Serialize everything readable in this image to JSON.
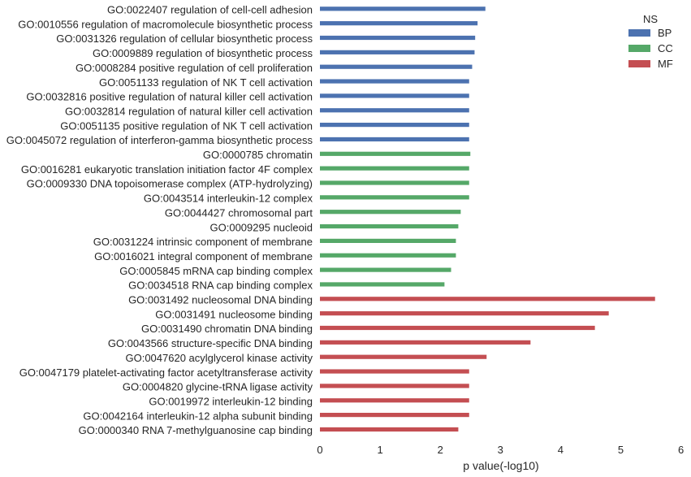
{
  "chart_data": {
    "type": "bar",
    "orientation": "horizontal",
    "xlabel": "p value(-log10)",
    "ylabel": "",
    "xlim": [
      0,
      6
    ],
    "xticks": [
      "0",
      "1",
      "2",
      "3",
      "4",
      "5",
      "6"
    ],
    "grid": false,
    "legend": {
      "title": "NS",
      "placement": "top-right",
      "entries": [
        {
          "name": "BP",
          "color": "#4c72b0"
        },
        {
          "name": "CC",
          "color": "#55a868"
        },
        {
          "name": "MF",
          "color": "#c44e52"
        }
      ]
    },
    "categories": [
      "GO:0022407 regulation of cell-cell adhesion",
      "GO:0010556 regulation of macromolecule biosynthetic process",
      "GO:0031326 regulation of cellular biosynthetic process",
      "GO:0009889 regulation of biosynthetic process",
      "GO:0008284 positive regulation of cell proliferation",
      "GO:0051133 regulation of NK T cell activation",
      "GO:0032816 positive regulation of natural killer cell activation",
      "GO:0032814 regulation of natural killer cell activation",
      "GO:0051135 positive regulation of NK T cell activation",
      "GO:0045072 regulation of interferon-gamma biosynthetic process",
      "GO:0000785 chromatin",
      "GO:0016281 eukaryotic translation initiation factor 4F complex",
      "GO:0009330 DNA topoisomerase complex (ATP-hydrolyzing)",
      "GO:0043514 interleukin-12 complex",
      "GO:0044427 chromosomal part",
      "GO:0009295 nucleoid",
      "GO:0031224 intrinsic component of membrane",
      "GO:0016021 integral component of membrane",
      "GO:0005845 mRNA cap binding complex",
      "GO:0034518 RNA cap binding complex",
      "GO:0031492 nucleosomal DNA binding",
      "GO:0031491 nucleosome binding",
      "GO:0031490 chromatin DNA binding",
      "GO:0043566 structure-specific DNA binding",
      "GO:0047620 acylglycerol kinase activity",
      "GO:0047179 platelet-activating factor acetyltransferase activity",
      "GO:0004820 glycine-tRNA ligase activity",
      "GO:0019972 interleukin-12 binding",
      "GO:0042164 interleukin-12 alpha subunit binding",
      "GO:0000340 RNA 7-methylguanosine cap binding"
    ],
    "series": [
      {
        "name": "BP",
        "color": "#4c72b0",
        "values": [
          2.75,
          2.62,
          2.58,
          2.57,
          2.53,
          2.48,
          2.48,
          2.48,
          2.48,
          2.48,
          null,
          null,
          null,
          null,
          null,
          null,
          null,
          null,
          null,
          null,
          null,
          null,
          null,
          null,
          null,
          null,
          null,
          null,
          null,
          null
        ]
      },
      {
        "name": "CC",
        "color": "#55a868",
        "values": [
          null,
          null,
          null,
          null,
          null,
          null,
          null,
          null,
          null,
          null,
          2.5,
          2.48,
          2.48,
          2.48,
          2.34,
          2.3,
          2.26,
          2.26,
          2.18,
          2.07,
          null,
          null,
          null,
          null,
          null,
          null,
          null,
          null,
          null,
          null
        ]
      },
      {
        "name": "MF",
        "color": "#c44e52",
        "values": [
          null,
          null,
          null,
          null,
          null,
          null,
          null,
          null,
          null,
          null,
          null,
          null,
          null,
          null,
          null,
          null,
          null,
          null,
          null,
          null,
          5.57,
          4.8,
          4.57,
          3.5,
          2.77,
          2.48,
          2.48,
          2.48,
          2.48,
          2.3
        ]
      }
    ]
  }
}
